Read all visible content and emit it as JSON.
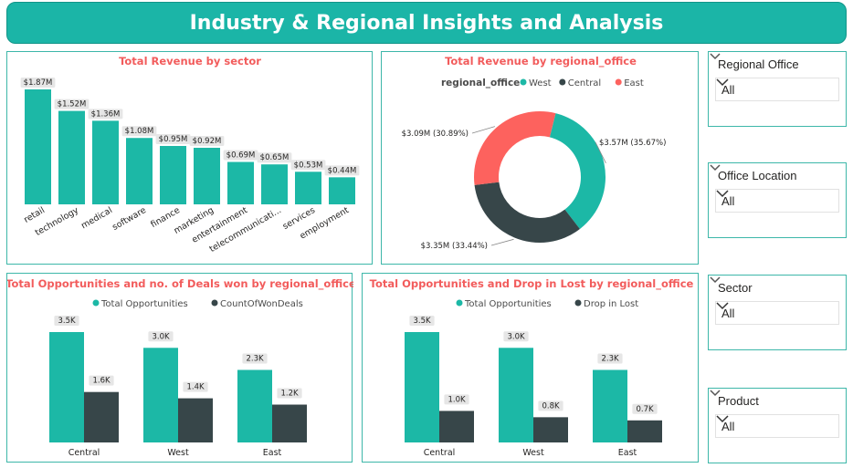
{
  "header": {
    "title": "Industry & Regional Insights and Analysis"
  },
  "colors": {
    "teal": "#1cb8a6",
    "dark": "#374649",
    "red": "#fd625e",
    "title": "#f25c5c"
  },
  "revenue_by_sector": {
    "title": "Total Revenue by sector",
    "chart_data": {
      "type": "bar",
      "categories": [
        "retail",
        "technology",
        "medical",
        "software",
        "finance",
        "marketing",
        "entertainment",
        "telecommunicati...",
        "services",
        "employment"
      ],
      "values": [
        1.87,
        1.52,
        1.36,
        1.08,
        0.95,
        0.92,
        0.69,
        0.65,
        0.53,
        0.44
      ],
      "labels": [
        "$1.87M",
        "$1.52M",
        "$1.36M",
        "$1.08M",
        "$0.95M",
        "$0.92M",
        "$0.69M",
        "$0.65M",
        "$0.53M",
        "$0.44M"
      ],
      "ylim": [
        0,
        1.87
      ]
    }
  },
  "revenue_by_office": {
    "title": "Total Revenue by regional_office",
    "legend_title": "regional_office",
    "chart_data": {
      "type": "pie",
      "categories": [
        "West",
        "Central",
        "East"
      ],
      "values": [
        3.57,
        3.35,
        3.09
      ],
      "labels": [
        "$3.57M (35.67%)",
        "$3.35M (33.44%)",
        "$3.09M (30.89%)"
      ],
      "colors": [
        "#1cb8a6",
        "#374649",
        "#fd625e"
      ]
    }
  },
  "opps_deals": {
    "title": "Total Opportunities and no. of Deals won by regional_office",
    "chart_data": {
      "type": "bar",
      "categories": [
        "Central",
        "West",
        "East"
      ],
      "series": [
        {
          "name": "Total Opportunities",
          "values": [
            3.5,
            3.0,
            2.3
          ],
          "labels": [
            "3.5K",
            "3.0K",
            "2.3K"
          ],
          "color": "#1cb8a6"
        },
        {
          "name": "CountOfWonDeals",
          "values": [
            1.6,
            1.4,
            1.2
          ],
          "labels": [
            "1.6K",
            "1.4K",
            "1.2K"
          ],
          "color": "#374649"
        }
      ],
      "ylim": [
        0,
        3.5
      ]
    }
  },
  "opps_lost": {
    "title": "Total Opportunities and Drop in Lost by regional_office",
    "chart_data": {
      "type": "bar",
      "categories": [
        "Central",
        "West",
        "East"
      ],
      "series": [
        {
          "name": "Total Opportunities",
          "values": [
            3.5,
            3.0,
            2.3
          ],
          "labels": [
            "3.5K",
            "3.0K",
            "2.3K"
          ],
          "color": "#1cb8a6"
        },
        {
          "name": "Drop in Lost",
          "values": [
            1.0,
            0.8,
            0.7
          ],
          "labels": [
            "1.0K",
            "0.8K",
            "0.7K"
          ],
          "color": "#374649"
        }
      ],
      "ylim": [
        0,
        3.5
      ]
    }
  },
  "slicers": [
    {
      "title": "Regional Office",
      "value": "All"
    },
    {
      "title": "Office Location",
      "value": "All"
    },
    {
      "title": "Sector",
      "value": "All"
    },
    {
      "title": "Product",
      "value": "All"
    }
  ]
}
